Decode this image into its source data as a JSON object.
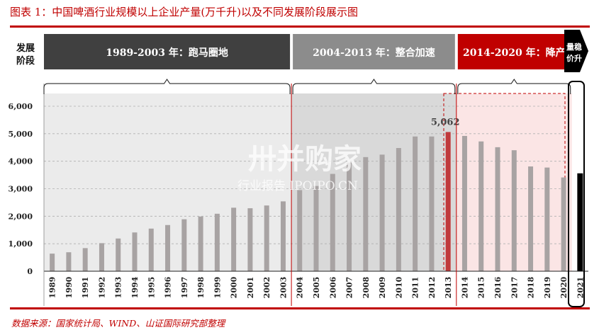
{
  "title": "图表 1：中国啤酒行业规模以上企业产量(万千升)以及不同发展阶段展示图",
  "source": "数据来源：国家统计局、WIND、山证国际研究部整理",
  "stage_label": [
    "发展",
    "阶段"
  ],
  "stages": [
    {
      "label": "1989-2003 年：跑马圈地",
      "from": "1989",
      "to": "2003",
      "color": "#404040"
    },
    {
      "label": "2004-2013 年：整合加速",
      "from": "2004",
      "to": "2013",
      "color": "#8c8c8c"
    },
    {
      "label": "2014-2020 年：降产",
      "from": "2014",
      "to": "2020",
      "color": "#c00000"
    }
  ],
  "arrow_label": [
    "量稳",
    "价升"
  ],
  "watermark": {
    "brand": "卅并购家",
    "sub": "行业报告 IPOIPO.CN"
  },
  "colors": {
    "bar": "#a8a3a3",
    "highlight_bar": "#c0393b",
    "last_bar": "#000000",
    "zone1": "#ebebeb",
    "zone2": "#d9d9d9",
    "zone3": "#fbe5e5",
    "accent": "#c00000"
  },
  "chart_data": {
    "type": "bar",
    "categories": [
      "1989",
      "1990",
      "1991",
      "1992",
      "1993",
      "1994",
      "1995",
      "1996",
      "1997",
      "1998",
      "1999",
      "2000",
      "2001",
      "2002",
      "2003",
      "2004",
      "2005",
      "2006",
      "2007",
      "2008",
      "2009",
      "2010",
      "2011",
      "2012",
      "2013",
      "2014",
      "2015",
      "2016",
      "2017",
      "2018",
      "2019",
      "2020",
      "2021"
    ],
    "values": [
      640,
      690,
      840,
      1020,
      1190,
      1410,
      1550,
      1680,
      1890,
      1990,
      2090,
      2310,
      2290,
      2390,
      2540,
      2950,
      3100,
      3540,
      3950,
      4150,
      4240,
      4480,
      4900,
      4900,
      5062,
      4920,
      4720,
      4510,
      4400,
      3810,
      3770,
      3410,
      3560
    ],
    "annotation": {
      "category": "2013",
      "text": "5,062"
    },
    "yticks": [
      "0",
      "1,000",
      "2,000",
      "3,000",
      "4,000",
      "5,000",
      "6,000"
    ],
    "ylim": [
      0,
      6000
    ],
    "grid": true
  }
}
